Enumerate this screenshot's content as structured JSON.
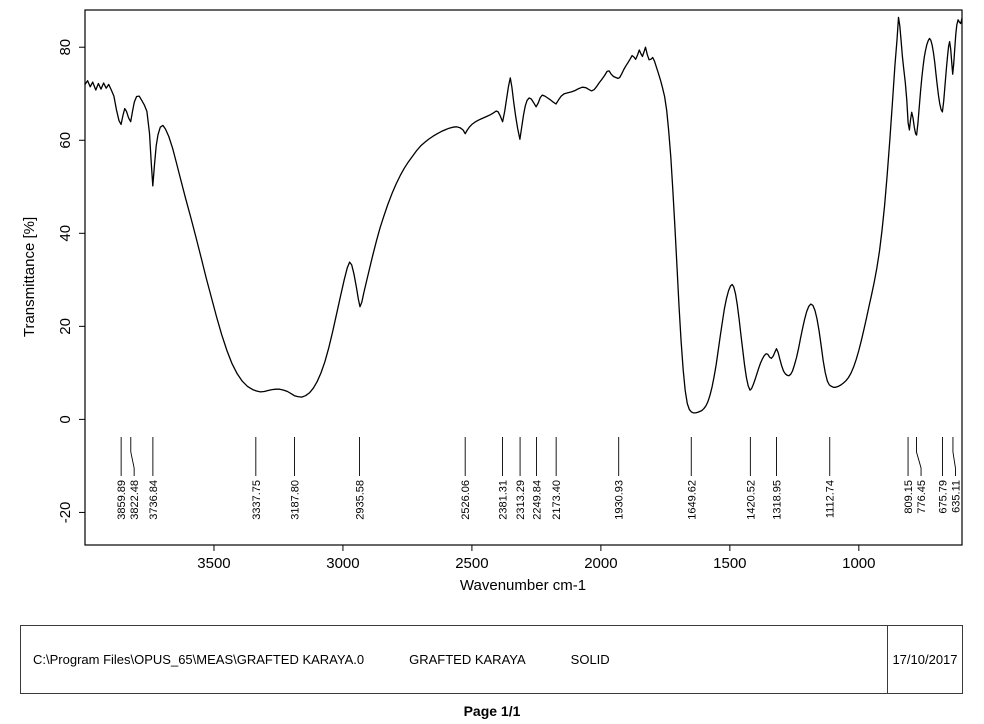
{
  "chart_data": {
    "type": "line",
    "title": "",
    "xlabel": "Wavenumber cm-1",
    "ylabel": "Transmittance [%]",
    "series_name": "GRAFTED KARAYA",
    "line_color": "#000000",
    "x_range": [
      4000,
      600
    ],
    "y_range": [
      -27,
      88
    ],
    "x_ticks": [
      3500,
      3000,
      2500,
      2000,
      1500,
      1000
    ],
    "y_ticks": [
      -20,
      0,
      20,
      40,
      60,
      80
    ],
    "grid": false,
    "peak_labels": [
      "3859.89",
      "3822.48",
      "3736.84",
      "3337.75",
      "3187.80",
      "2935.58",
      "2526.06",
      "2381.31",
      "2313.29",
      "2249.84",
      "2173.40",
      "1930.93",
      "1649.62",
      "1420.52",
      "1318.95",
      "1112.74",
      "809.15",
      "776.45",
      "675.79",
      "635.11"
    ],
    "points": [
      [
        4000,
        72
      ],
      [
        3990,
        72.8
      ],
      [
        3980,
        71.5
      ],
      [
        3970,
        72.5
      ],
      [
        3958,
        70.8
      ],
      [
        3948,
        72.2
      ],
      [
        3938,
        71
      ],
      [
        3928,
        72.3
      ],
      [
        3918,
        71.2
      ],
      [
        3908,
        72
      ],
      [
        3898,
        70.8
      ],
      [
        3888,
        69.5
      ],
      [
        3878,
        66.5
      ],
      [
        3868,
        64.2
      ],
      [
        3860,
        63.4
      ],
      [
        3853,
        65.3
      ],
      [
        3846,
        66.8
      ],
      [
        3839,
        66.2
      ],
      [
        3831,
        64.8
      ],
      [
        3823,
        64
      ],
      [
        3816,
        66.2
      ],
      [
        3809,
        68.2
      ],
      [
        3800,
        69.4
      ],
      [
        3790,
        69.5
      ],
      [
        3780,
        68.6
      ],
      [
        3770,
        67.6
      ],
      [
        3760,
        66.2
      ],
      [
        3750,
        61.5
      ],
      [
        3743,
        55
      ],
      [
        3737,
        50.2
      ],
      [
        3731,
        54.5
      ],
      [
        3724,
        58.8
      ],
      [
        3717,
        61.2
      ],
      [
        3708,
        62.8
      ],
      [
        3698,
        63.2
      ],
      [
        3688,
        62.4
      ],
      [
        3675,
        60.8
      ],
      [
        3660,
        58.2
      ],
      [
        3645,
        55
      ],
      [
        3630,
        51.8
      ],
      [
        3610,
        47.5
      ],
      [
        3590,
        43.4
      ],
      [
        3570,
        39.2
      ],
      [
        3550,
        34.8
      ],
      [
        3530,
        30.4
      ],
      [
        3510,
        26.2
      ],
      [
        3490,
        22
      ],
      [
        3470,
        18.2
      ],
      [
        3450,
        14.8
      ],
      [
        3430,
        12
      ],
      [
        3410,
        9.8
      ],
      [
        3390,
        8.2
      ],
      [
        3370,
        7.1
      ],
      [
        3350,
        6.4
      ],
      [
        3335,
        6.1
      ],
      [
        3320,
        5.9
      ],
      [
        3305,
        6
      ],
      [
        3290,
        6.2
      ],
      [
        3275,
        6.4
      ],
      [
        3260,
        6.5
      ],
      [
        3245,
        6.5
      ],
      [
        3230,
        6.3
      ],
      [
        3215,
        6
      ],
      [
        3200,
        5.5
      ],
      [
        3188,
        5.1
      ],
      [
        3175,
        4.9
      ],
      [
        3160,
        4.8
      ],
      [
        3145,
        5.1
      ],
      [
        3130,
        5.7
      ],
      [
        3115,
        6.7
      ],
      [
        3100,
        8.1
      ],
      [
        3085,
        10
      ],
      [
        3070,
        12.4
      ],
      [
        3055,
        15.4
      ],
      [
        3040,
        18.8
      ],
      [
        3025,
        22.6
      ],
      [
        3010,
        26.4
      ],
      [
        2995,
        30
      ],
      [
        2983,
        32.6
      ],
      [
        2974,
        33.8
      ],
      [
        2966,
        33.2
      ],
      [
        2957,
        31.2
      ],
      [
        2948,
        28.4
      ],
      [
        2940,
        25.8
      ],
      [
        2934,
        24.2
      ],
      [
        2927,
        25.2
      ],
      [
        2919,
        27.2
      ],
      [
        2910,
        29.4
      ],
      [
        2898,
        32.2
      ],
      [
        2884,
        35.4
      ],
      [
        2870,
        38.4
      ],
      [
        2856,
        41.2
      ],
      [
        2842,
        43.6
      ],
      [
        2826,
        46.2
      ],
      [
        2810,
        48.5
      ],
      [
        2794,
        50.6
      ],
      [
        2778,
        52.4
      ],
      [
        2762,
        54
      ],
      [
        2746,
        55.4
      ],
      [
        2730,
        56.6
      ],
      [
        2714,
        57.8
      ],
      [
        2698,
        58.8
      ],
      [
        2682,
        59.6
      ],
      [
        2666,
        60.3
      ],
      [
        2650,
        60.9
      ],
      [
        2634,
        61.4
      ],
      [
        2618,
        61.9
      ],
      [
        2602,
        62.3
      ],
      [
        2588,
        62.6
      ],
      [
        2574,
        62.8
      ],
      [
        2560,
        62.9
      ],
      [
        2546,
        62.7
      ],
      [
        2534,
        62.2
      ],
      [
        2526,
        61.4
      ],
      [
        2518,
        62.2
      ],
      [
        2509,
        62.9
      ],
      [
        2500,
        63.4
      ],
      [
        2488,
        63.9
      ],
      [
        2476,
        64.3
      ],
      [
        2464,
        64.6
      ],
      [
        2452,
        64.9
      ],
      [
        2440,
        65.2
      ],
      [
        2428,
        65.5
      ],
      [
        2416,
        65.9
      ],
      [
        2406,
        66.3
      ],
      [
        2398,
        66.1
      ],
      [
        2390,
        65.2
      ],
      [
        2381,
        64
      ],
      [
        2373,
        66.2
      ],
      [
        2366,
        68.8
      ],
      [
        2358,
        71.6
      ],
      [
        2351,
        73.4
      ],
      [
        2345,
        71.4
      ],
      [
        2338,
        68.2
      ],
      [
        2331,
        65.4
      ],
      [
        2323,
        62.6
      ],
      [
        2314,
        60.2
      ],
      [
        2307,
        62.8
      ],
      [
        2300,
        65.4
      ],
      [
        2293,
        67.4
      ],
      [
        2286,
        68.6
      ],
      [
        2278,
        69.1
      ],
      [
        2270,
        68.9
      ],
      [
        2261,
        68.1
      ],
      [
        2251,
        67.2
      ],
      [
        2243,
        68
      ],
      [
        2235,
        69.2
      ],
      [
        2227,
        69.7
      ],
      [
        2217,
        69.5
      ],
      [
        2207,
        69.1
      ],
      [
        2196,
        68.7
      ],
      [
        2185,
        68.2
      ],
      [
        2174,
        67.8
      ],
      [
        2164,
        68.7
      ],
      [
        2154,
        69.5
      ],
      [
        2142,
        70
      ],
      [
        2128,
        70.2
      ],
      [
        2114,
        70.4
      ],
      [
        2100,
        70.7
      ],
      [
        2086,
        71.1
      ],
      [
        2072,
        71.4
      ],
      [
        2058,
        71.3
      ],
      [
        2046,
        70.9
      ],
      [
        2036,
        70.6
      ],
      [
        2026,
        70.9
      ],
      [
        2016,
        71.6
      ],
      [
        2006,
        72.4
      ],
      [
        1996,
        73.1
      ],
      [
        1986,
        73.9
      ],
      [
        1976,
        74.8
      ],
      [
        1968,
        74.9
      ],
      [
        1960,
        74.2
      ],
      [
        1951,
        73.7
      ],
      [
        1942,
        73.5
      ],
      [
        1934,
        73.3
      ],
      [
        1927,
        73.5
      ],
      [
        1919,
        74.3
      ],
      [
        1911,
        75.2
      ],
      [
        1903,
        76
      ],
      [
        1895,
        76.7
      ],
      [
        1887,
        77.4
      ],
      [
        1879,
        78.2
      ],
      [
        1872,
        77.9
      ],
      [
        1865,
        77.4
      ],
      [
        1858,
        78.3
      ],
      [
        1851,
        79.4
      ],
      [
        1845,
        78.6
      ],
      [
        1839,
        78
      ],
      [
        1833,
        79
      ],
      [
        1827,
        80
      ],
      [
        1820,
        78.4
      ],
      [
        1813,
        77.3
      ],
      [
        1806,
        77.4
      ],
      [
        1799,
        77.8
      ],
      [
        1792,
        77
      ],
      [
        1785,
        75.8
      ],
      [
        1777,
        74.4
      ],
      [
        1769,
        72.9
      ],
      [
        1761,
        71.3
      ],
      [
        1753,
        69.4
      ],
      [
        1745,
        66.4
      ],
      [
        1737,
        62
      ],
      [
        1729,
        56.4
      ],
      [
        1721,
        49.4
      ],
      [
        1713,
        41.4
      ],
      [
        1705,
        32.8
      ],
      [
        1697,
        24.4
      ],
      [
        1689,
        16.8
      ],
      [
        1681,
        10.6
      ],
      [
        1673,
        6.2
      ],
      [
        1665,
        3.4
      ],
      [
        1657,
        2.1
      ],
      [
        1649,
        1.6
      ],
      [
        1641,
        1.4
      ],
      [
        1633,
        1.4
      ],
      [
        1625,
        1.5
      ],
      [
        1617,
        1.7
      ],
      [
        1609,
        1.9
      ],
      [
        1601,
        2.3
      ],
      [
        1593,
        2.9
      ],
      [
        1585,
        3.8
      ],
      [
        1577,
        5.2
      ],
      [
        1569,
        7
      ],
      [
        1561,
        9.2
      ],
      [
        1553,
        11.8
      ],
      [
        1545,
        14.8
      ],
      [
        1537,
        18
      ],
      [
        1529,
        21
      ],
      [
        1521,
        23.8
      ],
      [
        1513,
        26
      ],
      [
        1505,
        27.7
      ],
      [
        1497,
        28.7
      ],
      [
        1491,
        29
      ],
      [
        1485,
        28.5
      ],
      [
        1478,
        27
      ],
      [
        1471,
        24.6
      ],
      [
        1464,
        21.6
      ],
      [
        1457,
        18.2
      ],
      [
        1450,
        14.8
      ],
      [
        1443,
        11.6
      ],
      [
        1436,
        9
      ],
      [
        1429,
        7.2
      ],
      [
        1422,
        6.3
      ],
      [
        1416,
        6.6
      ],
      [
        1409,
        7.5
      ],
      [
        1402,
        8.6
      ],
      [
        1395,
        9.8
      ],
      [
        1388,
        11
      ],
      [
        1381,
        12.1
      ],
      [
        1374,
        13
      ],
      [
        1367,
        13.7
      ],
      [
        1360,
        14.1
      ],
      [
        1353,
        14
      ],
      [
        1346,
        13.4
      ],
      [
        1339,
        13.1
      ],
      [
        1332,
        13.6
      ],
      [
        1325,
        14.5
      ],
      [
        1319,
        15.2
      ],
      [
        1313,
        14.4
      ],
      [
        1306,
        12.9
      ],
      [
        1299,
        11.5
      ],
      [
        1292,
        10.4
      ],
      [
        1285,
        9.8
      ],
      [
        1278,
        9.5
      ],
      [
        1271,
        9.4
      ],
      [
        1264,
        9.7
      ],
      [
        1257,
        10.4
      ],
      [
        1250,
        11.6
      ],
      [
        1242,
        13.2
      ],
      [
        1234,
        15.2
      ],
      [
        1226,
        17.4
      ],
      [
        1218,
        19.6
      ],
      [
        1210,
        21.6
      ],
      [
        1202,
        23.2
      ],
      [
        1194,
        24.3
      ],
      [
        1186,
        24.8
      ],
      [
        1178,
        24.5
      ],
      [
        1170,
        23.4
      ],
      [
        1162,
        21.6
      ],
      [
        1154,
        19
      ],
      [
        1146,
        15.8
      ],
      [
        1138,
        12.6
      ],
      [
        1130,
        10
      ],
      [
        1122,
        8.2
      ],
      [
        1114,
        7.4
      ],
      [
        1106,
        7.1
      ],
      [
        1098,
        6.9
      ],
      [
        1090,
        6.9
      ],
      [
        1080,
        7.1
      ],
      [
        1070,
        7.4
      ],
      [
        1060,
        7.8
      ],
      [
        1050,
        8.3
      ],
      [
        1040,
        9
      ],
      [
        1030,
        10
      ],
      [
        1020,
        11.3
      ],
      [
        1010,
        12.9
      ],
      [
        1000,
        14.8
      ],
      [
        990,
        17
      ],
      [
        980,
        19.4
      ],
      [
        970,
        21.9
      ],
      [
        960,
        24.4
      ],
      [
        950,
        26.9
      ],
      [
        940,
        29.6
      ],
      [
        930,
        32.6
      ],
      [
        920,
        36.2
      ],
      [
        910,
        40.6
      ],
      [
        900,
        46
      ],
      [
        890,
        52.6
      ],
      [
        880,
        60
      ],
      [
        870,
        68
      ],
      [
        860,
        76
      ],
      [
        852,
        81.6
      ],
      [
        846,
        86.4
      ],
      [
        841,
        84.6
      ],
      [
        836,
        81.4
      ],
      [
        831,
        78
      ],
      [
        826,
        75.4
      ],
      [
        820,
        72.4
      ],
      [
        814,
        68.6
      ],
      [
        809,
        63.8
      ],
      [
        804,
        62.2
      ],
      [
        800,
        64.2
      ],
      [
        795,
        66
      ],
      [
        790,
        64.8
      ],
      [
        785,
        62.8
      ],
      [
        780,
        61.4
      ],
      [
        776,
        61.1
      ],
      [
        771,
        63.6
      ],
      [
        766,
        67
      ],
      [
        761,
        70.4
      ],
      [
        756,
        73.4
      ],
      [
        751,
        75.9
      ],
      [
        746,
        77.9
      ],
      [
        741,
        79.4
      ],
      [
        736,
        80.6
      ],
      [
        731,
        81.4
      ],
      [
        726,
        81.9
      ],
      [
        721,
        81.5
      ],
      [
        716,
        80.5
      ],
      [
        711,
        78.9
      ],
      [
        706,
        76.8
      ],
      [
        701,
        74.4
      ],
      [
        696,
        71.9
      ],
      [
        691,
        69.6
      ],
      [
        686,
        67.8
      ],
      [
        681,
        66.6
      ],
      [
        676,
        66.1
      ],
      [
        671,
        68.4
      ],
      [
        666,
        71.8
      ],
      [
        661,
        75.2
      ],
      [
        656,
        78.2
      ],
      [
        652,
        80.2
      ],
      [
        648,
        81.2
      ],
      [
        644,
        79.6
      ],
      [
        640,
        76.8
      ],
      [
        636,
        74.2
      ],
      [
        632,
        76.4
      ],
      [
        628,
        79.8
      ],
      [
        624,
        82.8
      ],
      [
        620,
        84.8
      ],
      [
        615,
        85.9
      ],
      [
        610,
        85.4
      ],
      [
        605,
        85.1
      ],
      [
        600,
        86.2
      ]
    ]
  },
  "footer": {
    "file_path": "C:\\Program Files\\OPUS_65\\MEAS\\GRAFTED KARAYA.0",
    "sample_name": "GRAFTED KARAYA",
    "sample_form": "SOLID",
    "date": "17/10/2017",
    "page_label": "Page 1/1"
  }
}
